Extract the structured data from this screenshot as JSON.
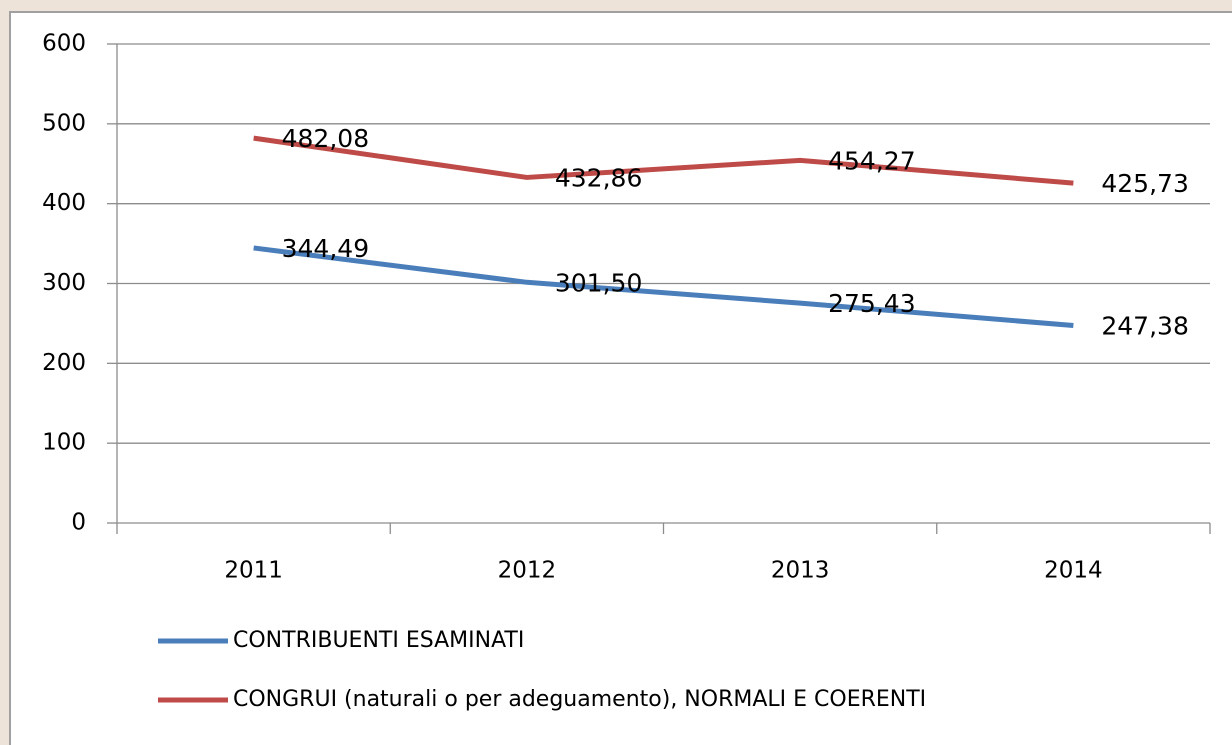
{
  "chart_data": {
    "type": "line",
    "categories": [
      "2011",
      "2012",
      "2013",
      "2014"
    ],
    "series": [
      {
        "name": "CONTRIBUENTI ESAMINATI",
        "color": "#4a7ebb",
        "values": [
          344.49,
          301.5,
          275.43,
          247.38
        ],
        "value_labels": [
          "344,49",
          "301,50",
          "275,43",
          "247,38"
        ]
      },
      {
        "name": "CONGRUI (naturali o per adeguamento), NORMALI E COERENTI",
        "color": "#be4b48",
        "values": [
          482.08,
          432.86,
          454.27,
          425.73
        ],
        "value_labels": [
          "482,08",
          "432,86",
          "454,27",
          "425,73"
        ]
      }
    ],
    "ylim": [
      0,
      600
    ],
    "yticks": [
      0,
      100,
      200,
      300,
      400,
      500,
      600
    ],
    "grid": true
  }
}
